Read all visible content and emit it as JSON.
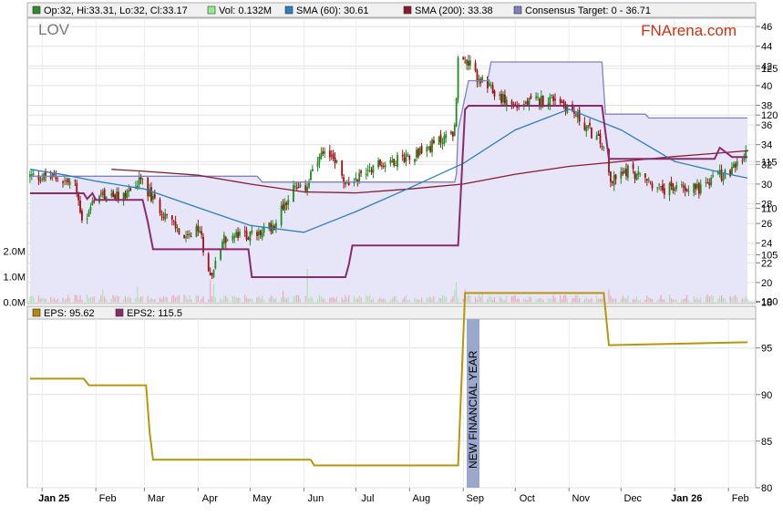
{
  "legend_top": [
    {
      "text": "Op:32, Hi:33.31, Lo:32, Cl:33.17",
      "color": "#2e8b2e"
    },
    {
      "text": "Vol: 0.132M",
      "color": "#90ee90"
    },
    {
      "text": "SMA (60): 30.61",
      "color": "#2a7fc0"
    },
    {
      "text": "SMA (200): 33.38",
      "color": "#8b1a2e"
    },
    {
      "text": "Consensus Target: 0 - 36.71",
      "color": "#8080c0"
    }
  ],
  "legend_bottom": [
    {
      "text": "EPS: 95.62",
      "color": "#b8860b"
    },
    {
      "text": "EPS2: 115.5",
      "color": "#8b2a6b"
    }
  ],
  "ticker": "LOV",
  "brand": "FNArena.com",
  "annotation": "NEW FINANCIAL YEAR",
  "colors": {
    "up": "#1f8a1f",
    "down": "#a01010",
    "sma60": "#2a7fc0",
    "sma200": "#8b1a2e",
    "target_line": "#8080c0",
    "target_fill": "#e6e6f8",
    "eps": "#b8960b",
    "eps2": "#8b2a6b",
    "volume": "#f0a0b0",
    "brand": "#d03010"
  },
  "chart_data": [
    {
      "type": "candlestick",
      "x_tick_labels": [
        "Jan 25",
        "Feb",
        "Mar",
        "Apr",
        "May",
        "Jun",
        "Jul",
        "Aug",
        "Sep",
        "Oct",
        "Nov",
        "Dec",
        "Jan 26",
        "Feb"
      ],
      "y_tick_labels": [
        "18",
        "20",
        "22",
        "24",
        "26",
        "28",
        "30",
        "32",
        "34",
        "36",
        "38",
        "40",
        "42",
        "44",
        "46"
      ],
      "ylim": [
        18,
        47
      ],
      "volume_tick_labels": [
        "0.0M",
        "1.0M",
        "2.0M"
      ],
      "grid": true,
      "close_anchors": [
        [
          "2024-12-25",
          30.8
        ],
        [
          "2025-01-10",
          30.6
        ],
        [
          "2025-01-20",
          29.9
        ],
        [
          "2025-01-25",
          25.8
        ],
        [
          "2025-02-01",
          29.0
        ],
        [
          "2025-02-15",
          28.6
        ],
        [
          "2025-02-28",
          30.4
        ],
        [
          "2025-03-05",
          28.6
        ],
        [
          "2025-03-15",
          26.5
        ],
        [
          "2025-03-25",
          24.3
        ],
        [
          "2025-04-02",
          25.4
        ],
        [
          "2025-04-05",
          22.5
        ],
        [
          "2025-04-09",
          20.8
        ],
        [
          "2025-04-15",
          24.3
        ],
        [
          "2025-04-25",
          24.8
        ],
        [
          "2025-05-05",
          24.8
        ],
        [
          "2025-05-15",
          25.9
        ],
        [
          "2025-05-25",
          29.5
        ],
        [
          "2025-06-01",
          29.3
        ],
        [
          "2025-06-10",
          32.6
        ],
        [
          "2025-06-18",
          33.0
        ],
        [
          "2025-06-25",
          29.8
        ],
        [
          "2025-07-10",
          31.8
        ],
        [
          "2025-07-25",
          32.5
        ],
        [
          "2025-08-10",
          33.5
        ],
        [
          "2025-08-20",
          34.6
        ],
        [
          "2025-08-27",
          35.5
        ],
        [
          "2025-08-29",
          42.8
        ],
        [
          "2025-09-05",
          42.0
        ],
        [
          "2025-09-10",
          40.6
        ],
        [
          "2025-09-20",
          39.1
        ],
        [
          "2025-10-01",
          37.9
        ],
        [
          "2025-10-15",
          38.5
        ],
        [
          "2025-10-25",
          38.8
        ],
        [
          "2025-11-05",
          37.0
        ],
        [
          "2025-11-15",
          35.0
        ],
        [
          "2025-11-20",
          34.0
        ],
        [
          "2025-11-25",
          30.2
        ],
        [
          "2025-12-05",
          31.5
        ],
        [
          "2025-12-15",
          30.5
        ],
        [
          "2025-12-25",
          29.3
        ],
        [
          "2026-01-05",
          29.8
        ],
        [
          "2026-01-15",
          29.6
        ],
        [
          "2026-01-25",
          30.8
        ],
        [
          "2026-02-05",
          31.5
        ],
        [
          "2026-02-12",
          33.2
        ]
      ],
      "sma60": [
        [
          "2024-12-25",
          31.5
        ],
        [
          "2025-01-15",
          30.9
        ],
        [
          "2025-02-01",
          30.3
        ],
        [
          "2025-03-01",
          29.5
        ],
        [
          "2025-04-01",
          27.6
        ],
        [
          "2025-05-01",
          25.8
        ],
        [
          "2025-06-01",
          25.1
        ],
        [
          "2025-07-01",
          27.2
        ],
        [
          "2025-08-01",
          29.6
        ],
        [
          "2025-09-01",
          32.1
        ],
        [
          "2025-10-01",
          35.5
        ],
        [
          "2025-11-01",
          37.6
        ],
        [
          "2025-12-01",
          35.5
        ],
        [
          "2026-01-01",
          32.3
        ],
        [
          "2026-02-01",
          31.0
        ],
        [
          "2026-02-12",
          30.61
        ]
      ],
      "sma200": [
        [
          "2025-02-10",
          31.5
        ],
        [
          "2025-03-01",
          31.3
        ],
        [
          "2025-04-01",
          30.9
        ],
        [
          "2025-05-01",
          30.0
        ],
        [
          "2025-06-01",
          29.2
        ],
        [
          "2025-07-01",
          29.1
        ],
        [
          "2025-08-01",
          29.5
        ],
        [
          "2025-09-01",
          30.0
        ],
        [
          "2025-10-01",
          31.0
        ],
        [
          "2025-11-01",
          31.8
        ],
        [
          "2025-12-01",
          32.3
        ],
        [
          "2026-01-01",
          32.8
        ],
        [
          "2026-02-12",
          33.38
        ]
      ],
      "consensus_target": [
        [
          "2024-12-25",
          30.8
        ],
        [
          "2025-01-25",
          30.8
        ],
        [
          "2025-05-05",
          30.8
        ],
        [
          "2025-05-08",
          30.2
        ],
        [
          "2025-08-27",
          30.2
        ],
        [
          "2025-08-28",
          31.0
        ],
        [
          "2025-08-29",
          35.5
        ],
        [
          "2025-09-04",
          40.5
        ],
        [
          "2025-09-15",
          40.5
        ],
        [
          "2025-09-17",
          42.4
        ],
        [
          "2025-11-20",
          42.4
        ],
        [
          "2025-11-22",
          37.1
        ],
        [
          "2025-12-15",
          37.1
        ],
        [
          "2025-12-17",
          36.71
        ],
        [
          "2026-02-12",
          36.71
        ]
      ],
      "volume_spikes": [
        [
          "2025-01-12",
          0.35
        ],
        [
          "2025-02-05",
          0.5
        ],
        [
          "2025-02-25",
          0.6
        ],
        [
          "2025-03-08",
          0.6
        ],
        [
          "2025-04-05",
          0.6
        ],
        [
          "2025-04-08",
          0.9
        ],
        [
          "2025-04-10",
          0.7
        ],
        [
          "2025-05-20",
          0.45
        ],
        [
          "2025-06-03",
          1.3
        ],
        [
          "2025-08-10",
          0.3
        ],
        [
          "2025-08-27",
          0.5
        ],
        [
          "2025-08-28",
          0.8
        ],
        [
          "2025-09-02",
          0.5
        ],
        [
          "2025-09-12",
          0.4
        ],
        [
          "2025-11-24",
          0.5
        ],
        [
          "2026-01-20",
          0.3
        ]
      ]
    },
    {
      "type": "line",
      "y_tick_labels": [
        "80",
        "85",
        "90",
        "95",
        "100",
        "105",
        "110",
        "115",
        "120",
        "125"
      ],
      "ylim": [
        80,
        126
      ],
      "series": [
        {
          "name": "EPS",
          "points": [
            [
              "2024-12-25",
              91.7
            ],
            [
              "2025-01-25",
              91.7
            ],
            [
              "2025-01-28",
              91.0
            ],
            [
              "2025-03-02",
              91.0
            ],
            [
              "2025-03-04",
              86.0
            ],
            [
              "2025-03-06",
              83.0
            ],
            [
              "2025-06-05",
              83.0
            ],
            [
              "2025-06-07",
              82.4
            ],
            [
              "2025-08-29",
              82.4
            ],
            [
              "2025-09-02",
              100.9
            ],
            [
              "2025-11-21",
              100.9
            ],
            [
              "2025-11-24",
              95.3
            ],
            [
              "2026-02-12",
              95.62
            ]
          ]
        },
        {
          "name": "EPS2",
          "points": [
            [
              "2024-12-25",
              111.6
            ],
            [
              "2025-01-25",
              111.6
            ],
            [
              "2025-01-27",
              111.0
            ],
            [
              "2025-01-30",
              111.6
            ],
            [
              "2025-02-01",
              110.9
            ],
            [
              "2025-02-28",
              110.9
            ],
            [
              "2025-03-03",
              108.5
            ],
            [
              "2025-03-06",
              105.6
            ],
            [
              "2025-04-30",
              105.6
            ],
            [
              "2025-05-02",
              102.6
            ],
            [
              "2025-06-25",
              102.6
            ],
            [
              "2025-06-27",
              104.0
            ],
            [
              "2025-06-29",
              106.0
            ],
            [
              "2025-08-29",
              106.0
            ],
            [
              "2025-09-02",
              120.6
            ],
            [
              "2025-09-04",
              121.0
            ],
            [
              "2025-11-20",
              121.0
            ],
            [
              "2025-11-24",
              115.3
            ],
            [
              "2026-01-24",
              115.3
            ],
            [
              "2026-01-27",
              116.5
            ],
            [
              "2026-02-03",
              115.5
            ],
            [
              "2026-02-12",
              115.5
            ]
          ]
        }
      ]
    }
  ]
}
